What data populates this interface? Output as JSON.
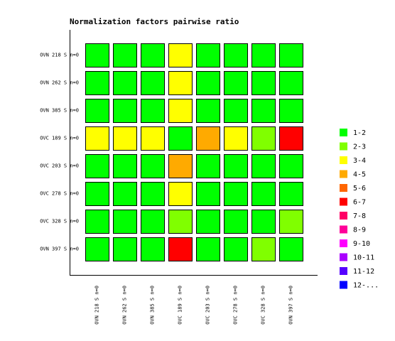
{
  "chart_data": {
    "type": "heatmap",
    "title": "Normalization factors pairwise ratio",
    "rows": [
      "OVN 218 S n=0",
      "OVN 262 S n=0",
      "OVN 385 S n=0",
      "OVC 189 S n=0",
      "OVC 203 S n=0",
      "OVC 278 S n=0",
      "OVC 328 S n=0",
      "OVN 397 S n=0"
    ],
    "columns": [
      "OVN 218 S n=0",
      "OVN 262 S n=0",
      "OVN 385 S n=0",
      "OVC 189 S n=0",
      "OVC 203 S n=0",
      "OVC 278 S n=0",
      "OVC 328 S n=0",
      "OVN 397 S n=0"
    ],
    "values": [
      [
        1.5,
        1.5,
        1.5,
        3.5,
        1.5,
        1.5,
        1.5,
        1.5
      ],
      [
        1.5,
        1.5,
        1.5,
        3.5,
        1.5,
        1.5,
        1.5,
        1.5
      ],
      [
        1.5,
        1.5,
        1.5,
        3.5,
        1.5,
        1.5,
        1.5,
        1.5
      ],
      [
        3.5,
        3.5,
        3.5,
        1.5,
        4.5,
        3.5,
        2.5,
        6.5
      ],
      [
        1.5,
        1.5,
        1.5,
        4.5,
        1.5,
        1.5,
        1.5,
        1.5
      ],
      [
        1.5,
        1.5,
        1.5,
        3.5,
        1.5,
        1.5,
        1.5,
        1.5
      ],
      [
        1.5,
        1.5,
        1.5,
        2.5,
        1.5,
        1.5,
        1.5,
        2.5
      ],
      [
        1.5,
        1.5,
        1.5,
        6.5,
        1.5,
        1.5,
        2.5,
        1.5
      ]
    ],
    "color_bins": [
      1,
      2,
      3,
      4,
      5,
      6,
      7,
      8,
      9,
      10,
      11,
      12
    ],
    "legend_labels": [
      "1-2",
      "2-3",
      "3-4",
      "4-5",
      "5-6",
      "6-7",
      "7-8",
      "8-9",
      "9-10",
      "10-11",
      "11-12",
      "12-..."
    ],
    "colors": [
      "#00ff00",
      "#80ff00",
      "#ffff00",
      "#ffaa00",
      "#ff6600",
      "#ff0000",
      "#ff0066",
      "#ff0099",
      "#ff00ff",
      "#aa00ff",
      "#5500ff",
      "#0000ff"
    ]
  }
}
